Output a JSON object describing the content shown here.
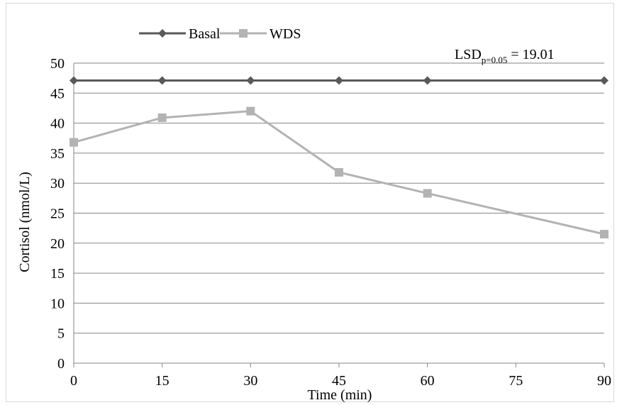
{
  "chart_data": {
    "type": "line",
    "x": [
      0,
      15,
      30,
      45,
      60,
      90
    ],
    "xticks": [
      "0",
      "15",
      "30",
      "45",
      "60",
      "75",
      "90"
    ],
    "yticks": [
      "0",
      "5",
      "10",
      "15",
      "20",
      "25",
      "30",
      "35",
      "40",
      "45",
      "50"
    ],
    "xlim": [
      0,
      90
    ],
    "ylim": [
      0,
      50
    ],
    "xlabel": "Time (min)",
    "ylabel": "Cortisol (nmol/L)",
    "grid": "horizontal",
    "legend_position": "top-left",
    "series": [
      {
        "name": "Basal",
        "values": [
          47.1,
          47.1,
          47.1,
          47.1,
          47.1,
          47.1
        ],
        "color": "#595959",
        "marker": "diamond"
      },
      {
        "name": "WDS",
        "values": [
          36.8,
          40.9,
          42.0,
          31.8,
          28.3,
          21.5
        ],
        "color": "#b3b3b3",
        "marker": "square"
      }
    ],
    "annotation": {
      "main": "LSD",
      "subscript": "p=0.05",
      "tail": " = 19.01"
    }
  }
}
